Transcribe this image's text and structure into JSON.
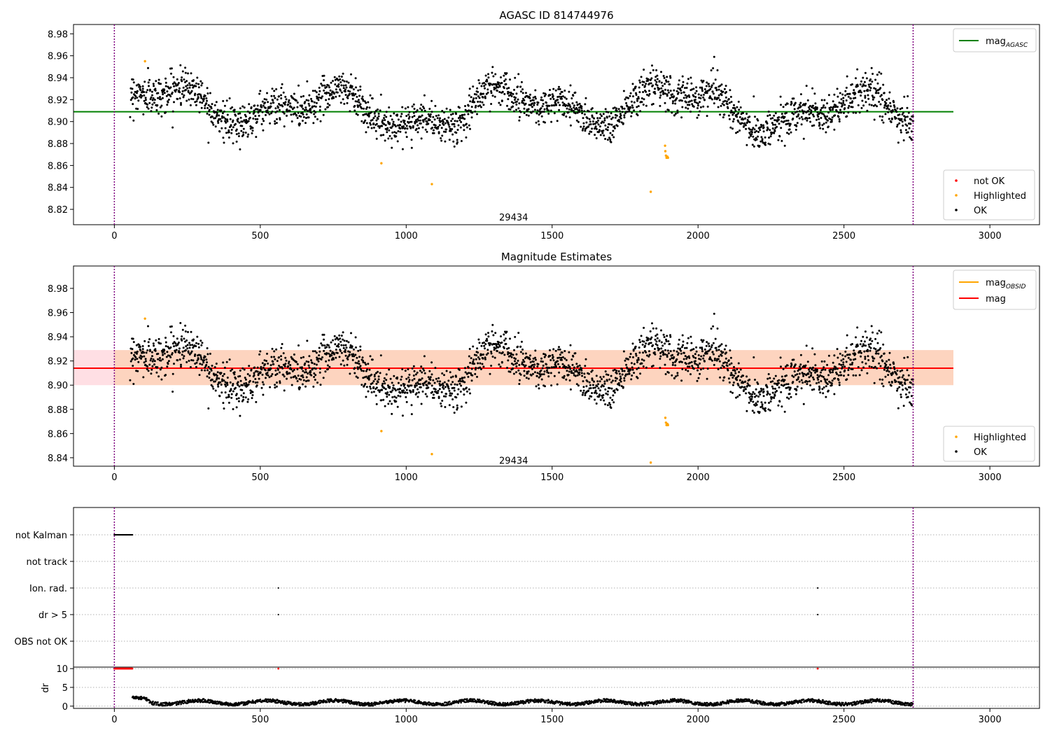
{
  "chart_data": [
    {
      "type": "scatter",
      "title": "AGASC ID 814744976",
      "xlabel": "",
      "ylabel": "",
      "xlim": [
        -140,
        3170
      ],
      "ylim": [
        8.806,
        8.9885
      ],
      "xticks": [
        0,
        500,
        1000,
        1500,
        2000,
        2500,
        3000
      ],
      "yticks": [
        8.82,
        8.84,
        8.86,
        8.88,
        8.9,
        8.92,
        8.94,
        8.96,
        8.98
      ],
      "ytick_labels": [
        "8.82",
        "8.84",
        "8.86",
        "8.88",
        "8.90",
        "8.92",
        "8.94",
        "8.96",
        "8.98"
      ],
      "vlines": [
        0,
        2737
      ],
      "hline": {
        "name_base": "mag",
        "name_sub": "AGASC",
        "y": 8.909,
        "x": [
          -140,
          2875
        ],
        "color": "#008000"
      },
      "obsid_label": {
        "text": "29434",
        "x": 1368,
        "y": 8.813
      },
      "legend_lines": {
        "placement": "top-right",
        "entries": [
          {
            "base": "mag",
            "sub": "AGASC",
            "color": "#008000"
          }
        ]
      },
      "legend_points": {
        "placement": "bottom-right",
        "entries": [
          {
            "label": "not OK",
            "color": "#ff0000"
          },
          {
            "label": "Highlighted",
            "color": "#ffa500"
          },
          {
            "label": "OK",
            "color": "#000000"
          }
        ]
      },
      "band": null,
      "series": [
        {
          "name": "OK",
          "color": "#000000",
          "x_range": [
            55,
            2737
          ],
          "n": 2400,
          "mean": 8.913,
          "noise": 0.0085
        },
        {
          "name": "Highlighted",
          "color": "#ffa500",
          "points": [
            [
              105,
              8.955
            ],
            [
              915,
              8.862
            ],
            [
              1088,
              8.843
            ],
            [
              1838,
              8.836
            ],
            [
              1888,
              8.873
            ],
            [
              1890,
              8.869
            ],
            [
              1892,
              8.867
            ],
            [
              1895,
              8.868
            ],
            [
              1897,
              8.867
            ],
            [
              1887,
              8.878
            ]
          ]
        }
      ]
    },
    {
      "type": "scatter",
      "title": "Magnitude Estimates",
      "xlabel": "",
      "ylabel": "",
      "xlim": [
        -140,
        3170
      ],
      "ylim": [
        8.833,
        8.9985
      ],
      "xticks": [
        0,
        500,
        1000,
        1500,
        2000,
        2500,
        3000
      ],
      "yticks": [
        8.84,
        8.86,
        8.88,
        8.9,
        8.92,
        8.94,
        8.96,
        8.98
      ],
      "ytick_labels": [
        "8.84",
        "8.86",
        "8.88",
        "8.90",
        "8.92",
        "8.94",
        "8.96",
        "8.98"
      ],
      "vlines": [
        0,
        2737
      ],
      "hline": {
        "name_base": "mag",
        "name_sub": "",
        "y": 8.914,
        "x": [
          -140,
          2875
        ],
        "color": "#ff0000"
      },
      "band": {
        "y_low": 8.9,
        "y_high": 8.929,
        "x_split": 0,
        "x_end": 2875
      },
      "obsid_label": {
        "text": "29434",
        "x": 1368,
        "y": 8.838
      },
      "legend_lines": {
        "placement": "top-right",
        "entries": [
          {
            "base": "mag",
            "sub": "OBSID",
            "color": "#ffa500"
          },
          {
            "base": "mag",
            "sub": "",
            "color": "#ff0000"
          }
        ]
      },
      "legend_points": {
        "placement": "bottom-right",
        "entries": [
          {
            "label": "Highlighted",
            "color": "#ffa500"
          },
          {
            "label": "OK",
            "color": "#000000"
          }
        ]
      },
      "series": [
        {
          "name": "OK",
          "color": "#000000",
          "x_range": [
            55,
            2737
          ],
          "n": 2400,
          "mean": 8.913,
          "noise": 0.0085
        },
        {
          "name": "Highlighted",
          "color": "#ffa500",
          "points": [
            [
              105,
              8.955
            ],
            [
              915,
              8.862
            ],
            [
              1088,
              8.843
            ],
            [
              1838,
              8.836
            ],
            [
              1888,
              8.873
            ],
            [
              1890,
              8.869
            ],
            [
              1892,
              8.867
            ],
            [
              1895,
              8.868
            ],
            [
              1897,
              8.867
            ]
          ]
        }
      ]
    },
    {
      "type": "scatter",
      "title": "",
      "xlabel": "",
      "ylabel": "",
      "xlim": [
        -140,
        3170
      ],
      "categories": [
        "not Kalman",
        "not track",
        "Ion. rad.",
        "dr > 5",
        "OBS not OK"
      ],
      "flag_points": [
        {
          "category": "not Kalman",
          "x_range": [
            0,
            62
          ],
          "step": 2
        },
        {
          "category": "Ion. rad.",
          "x": [
            562,
            2410
          ]
        },
        {
          "category": "dr > 5",
          "x": [
            562,
            2410
          ]
        }
      ],
      "vlines": [
        0,
        2737
      ]
    },
    {
      "type": "scatter",
      "title": "",
      "xlabel": "",
      "ylabel": "dr",
      "xlim": [
        -140,
        3170
      ],
      "ylim": [
        -0.6,
        10.4
      ],
      "xticks": [
        0,
        500,
        1000,
        1500,
        2000,
        2500,
        3000
      ],
      "yticks": [
        0,
        5,
        10
      ],
      "ytick_labels": [
        "0",
        "5",
        "10"
      ],
      "vlines": [
        0,
        2737
      ],
      "capped": {
        "color": "#ff0000",
        "y": 10,
        "x_range": [
          0,
          62
        ],
        "extra_x": [
          562,
          2410
        ]
      },
      "series": [
        {
          "name": "dr",
          "color": "#000000",
          "x_range": [
            62,
            2737
          ],
          "mean": 1.0
        }
      ]
    }
  ]
}
